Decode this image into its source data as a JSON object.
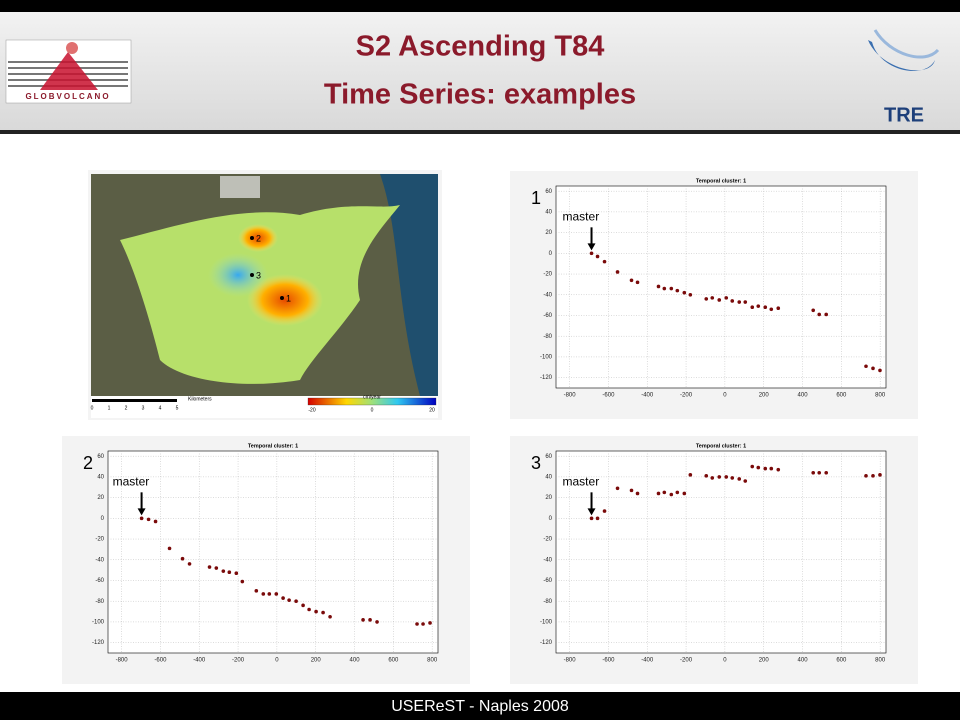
{
  "header": {
    "title_lines": [
      "S2 Ascending T84",
      "Time Series: examples"
    ],
    "left_logo": "GLOBVOLCANO",
    "right_logo": "TRE"
  },
  "map": {
    "points": [
      "2",
      "3",
      "1"
    ],
    "scale_label": "Kilometers",
    "scale_ticks": [
      "0",
      "1",
      "2",
      "3",
      "4",
      "5"
    ],
    "colorbar_label": "cm/year",
    "colorbar_ticks": [
      "-20",
      "0",
      "20"
    ]
  },
  "footer": "USEReST - Naples 2008",
  "chart_data": [
    {
      "type": "scatter",
      "title": "Temporal cluster: 1",
      "panel_label": "1",
      "annotation": "master",
      "color": "#7a0a0a",
      "x": [
        -687,
        -656,
        -620,
        -553,
        -481,
        -450,
        -342,
        -312,
        -276,
        -245,
        -209,
        -178,
        -96,
        -65,
        -29,
        7,
        38,
        74,
        105,
        141,
        172,
        208,
        239,
        275,
        455,
        486,
        522,
        727,
        763,
        799
      ],
      "values": [
        0,
        -3,
        -8,
        -18,
        -26,
        -28,
        -32,
        -34,
        -34,
        -36,
        -38,
        -40,
        -44,
        -43,
        -45,
        -43,
        -46,
        -47,
        -47,
        -52,
        -51,
        -52,
        -54,
        -53,
        -55,
        -59,
        -59,
        -109,
        -111,
        -113
      ],
      "xlim": [
        -870,
        830
      ],
      "ylim": [
        -130,
        65
      ],
      "xticks": [
        -800,
        -600,
        -400,
        -200,
        0,
        200,
        400,
        600,
        800
      ],
      "yticks": [
        60,
        40,
        20,
        0,
        -20,
        -40,
        -60,
        -80,
        -100,
        -120
      ],
      "grid": true
    },
    {
      "type": "scatter",
      "title": "Temporal cluster: 1",
      "panel_label": "2",
      "annotation": "master",
      "color": "#7a0a0a",
      "x": [
        -697,
        -661,
        -625,
        -553,
        -486,
        -450,
        -347,
        -312,
        -276,
        -245,
        -209,
        -178,
        -106,
        -70,
        -39,
        -3,
        32,
        63,
        99,
        135,
        166,
        202,
        238,
        274,
        444,
        480,
        516,
        722,
        753,
        789
      ],
      "values": [
        0,
        -1,
        -3,
        -29,
        -39,
        -44,
        -47,
        -48,
        -51,
        -52,
        -53,
        -61,
        -70,
        -73,
        -73,
        -73,
        -77,
        -79,
        -80,
        -84,
        -88,
        -90,
        -91,
        -95,
        -98,
        -98,
        -100,
        -102,
        -102,
        -101
      ],
      "xlim": [
        -870,
        830
      ],
      "ylim": [
        -130,
        65
      ],
      "xticks": [
        -800,
        -600,
        -400,
        -200,
        0,
        200,
        400,
        600,
        800
      ],
      "yticks": [
        60,
        40,
        20,
        0,
        -20,
        -40,
        -60,
        -80,
        -100,
        -120
      ],
      "grid": true
    },
    {
      "type": "scatter",
      "title": "Temporal cluster: 1",
      "panel_label": "3",
      "annotation": "master",
      "color": "#7a0a0a",
      "x": [
        -687,
        -656,
        -620,
        -553,
        -481,
        -450,
        -342,
        -312,
        -276,
        -245,
        -209,
        -178,
        -96,
        -65,
        -29,
        7,
        38,
        74,
        105,
        141,
        172,
        208,
        239,
        275,
        455,
        486,
        522,
        727,
        763,
        799
      ],
      "values": [
        0,
        0,
        7,
        29,
        27,
        24,
        24,
        25,
        23,
        25,
        24,
        42,
        41,
        39,
        40,
        40,
        39,
        38,
        36,
        50,
        49,
        48,
        48,
        47,
        44,
        44,
        44,
        41,
        41,
        42
      ],
      "xlim": [
        -870,
        830
      ],
      "ylim": [
        -130,
        65
      ],
      "xticks": [
        -800,
        -600,
        -400,
        -200,
        0,
        200,
        400,
        600,
        800
      ],
      "yticks": [
        60,
        40,
        20,
        0,
        -20,
        -40,
        -60,
        -80,
        -100,
        -120
      ],
      "grid": true
    }
  ]
}
